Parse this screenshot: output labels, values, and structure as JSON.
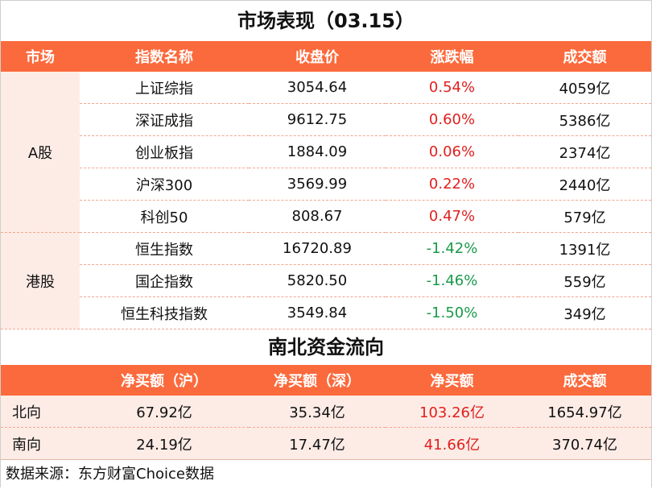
{
  "title": "市场表现（03.15）",
  "market": {
    "headers": [
      "市场",
      "指数名称",
      "收盘价",
      "涨跌幅",
      "成交额"
    ],
    "groups": [
      {
        "market": "A股",
        "rows": [
          {
            "name": "上证综指",
            "close": "3054.64",
            "change": "0.54%",
            "turnover": "4059亿"
          },
          {
            "name": "深证成指",
            "close": "9612.75",
            "change": "0.60%",
            "turnover": "5386亿"
          },
          {
            "name": "创业板指",
            "close": "1884.09",
            "change": "0.06%",
            "turnover": "2374亿"
          },
          {
            "name": "沪深300",
            "close": "3569.99",
            "change": "0.22%",
            "turnover": "2440亿"
          },
          {
            "name": "科创50",
            "close": "808.67",
            "change": "0.47%",
            "turnover": "579亿"
          }
        ]
      },
      {
        "market": "港股",
        "rows": [
          {
            "name": "恒生指数",
            "close": "16720.89",
            "change": "-1.42%",
            "turnover": "1391亿"
          },
          {
            "name": "国企指数",
            "close": "5820.50",
            "change": "-1.46%",
            "turnover": "559亿"
          },
          {
            "name": "恒生科技指数",
            "close": "3549.84",
            "change": "-1.50%",
            "turnover": "349亿"
          }
        ]
      }
    ]
  },
  "flow": {
    "title": "南北资金流向",
    "headers": [
      "",
      "净买额（沪）",
      "净买额（深）",
      "净买额",
      "成交额"
    ],
    "rows": [
      {
        "label": "北向",
        "sh": "67.92亿",
        "sz": "35.34亿",
        "net": "103.26亿",
        "turnover": "1654.97亿"
      },
      {
        "label": "南向",
        "sh": "24.19亿",
        "sz": "17.47亿",
        "net": "41.66亿",
        "turnover": "370.74亿"
      }
    ]
  },
  "footer": "数据来源：东方财富Choice数据",
  "colors": {
    "header_bg": "#fb6a3c",
    "up": "#e02020",
    "down": "#1a9a4a",
    "tint": "#fdece6"
  }
}
